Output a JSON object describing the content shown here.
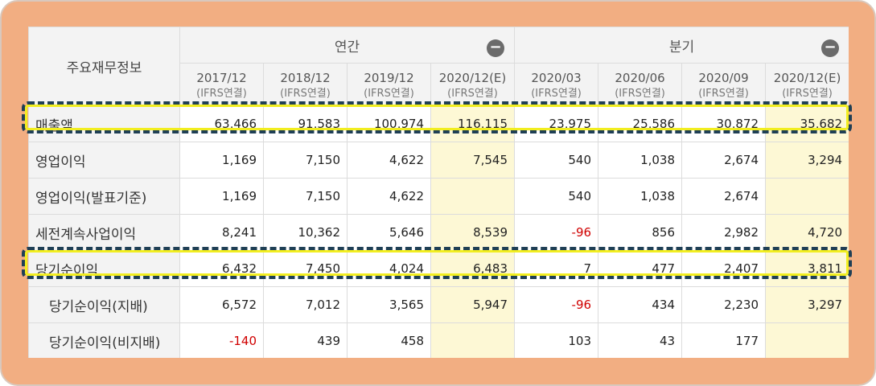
{
  "table": {
    "corner_label": "주요재무정보",
    "groups": [
      {
        "label": "연간",
        "toggle": "−"
      },
      {
        "label": "분기",
        "toggle": "−"
      }
    ],
    "periods": [
      {
        "date": "2017/12",
        "sub": "(IFRS연결)"
      },
      {
        "date": "2018/12",
        "sub": "(IFRS연결)"
      },
      {
        "date": "2019/12",
        "sub": "(IFRS연결)"
      },
      {
        "date": "2020/12(E)",
        "sub": "(IFRS연결)"
      },
      {
        "date": "2020/03",
        "sub": "(IFRS연결)"
      },
      {
        "date": "2020/06",
        "sub": "(IFRS연결)"
      },
      {
        "date": "2020/09",
        "sub": "(IFRS연결)"
      },
      {
        "date": "2020/12(E)",
        "sub": "(IFRS연결)"
      }
    ],
    "rows": [
      {
        "label": "매출액",
        "values": [
          "63,466",
          "91,583",
          "100,974",
          "116,115",
          "23,975",
          "25,586",
          "30,872",
          "35,682"
        ]
      },
      {
        "label": "영업이익",
        "values": [
          "1,169",
          "7,150",
          "4,622",
          "7,545",
          "540",
          "1,038",
          "2,674",
          "3,294"
        ]
      },
      {
        "label": "영업이익(발표기준)",
        "values": [
          "1,169",
          "7,150",
          "4,622",
          "",
          "540",
          "1,038",
          "2,674",
          ""
        ]
      },
      {
        "label": "세전계속사업이익",
        "values": [
          "8,241",
          "10,362",
          "5,646",
          "8,539",
          "-96",
          "856",
          "2,982",
          "4,720"
        ]
      },
      {
        "label": "당기순이익",
        "values": [
          "6,432",
          "7,450",
          "4,024",
          "6,483",
          "7",
          "477",
          "2,407",
          "3,811"
        ]
      },
      {
        "label": "당기순이익(지배)",
        "values": [
          "6,572",
          "7,012",
          "3,565",
          "5,947",
          "-96",
          "434",
          "2,230",
          "3,297"
        ]
      },
      {
        "label": "당기순이익(비지배)",
        "values": [
          "-140",
          "439",
          "458",
          "",
          "103",
          "43",
          "177",
          ""
        ]
      }
    ]
  },
  "highlighted_rows": [
    "매출액",
    "당기순이익"
  ],
  "colors": {
    "frame": "#f2ae82",
    "estimate_bg": "#fdf8d5",
    "negative": "#d00000",
    "highlight_dash": "#1f3f55",
    "highlight_glow": "#f2ee20"
  }
}
